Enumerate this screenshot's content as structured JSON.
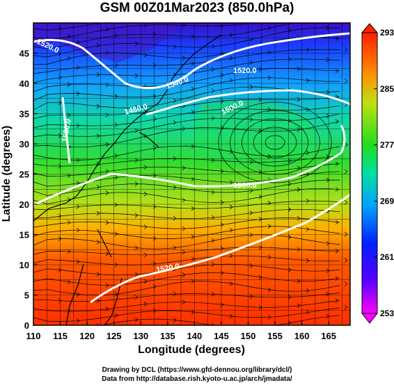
{
  "title": "GSM 00Z01Mar2023 (850.0hPa)",
  "x_axis": {
    "label": "Longitude (degrees)",
    "range": [
      110,
      169
    ],
    "ticks": [
      "110",
      "115",
      "120",
      "125",
      "130",
      "135",
      "140",
      "145",
      "150",
      "155",
      "160",
      "165"
    ]
  },
  "y_axis": {
    "label": "Latitude  (degrees)",
    "range": [
      0,
      50
    ],
    "ticks": [
      "0",
      "5",
      "10",
      "15",
      "20",
      "25",
      "30",
      "35",
      "40",
      "45"
    ]
  },
  "colorbar": {
    "min": 253,
    "max": 293,
    "ticks": [
      "253",
      "261",
      "269",
      "277",
      "285",
      "293"
    ]
  },
  "contour_labels": [
    "1520.0",
    "1540.0",
    "1560.0",
    "1480.0",
    "1500.0",
    "1520.0",
    "1560.0",
    "1520.0"
  ],
  "colors": {
    "cold": "#2020ff",
    "mid": "#22cc22",
    "warm": "#ff3300"
  },
  "credits": {
    "line1": "Drawing by DCL (https://www.gfd-dennou.org/library/dcl/)",
    "line2": "Data from http://database.rish.kyoto-u.ac.jp/arch/jmadata/"
  }
}
